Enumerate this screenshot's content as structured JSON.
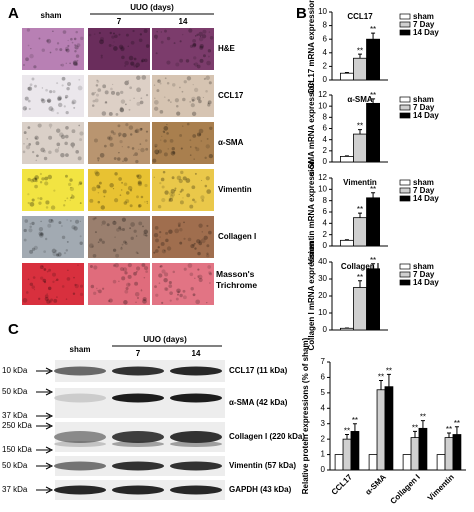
{
  "panels": [
    "A",
    "B",
    "C"
  ],
  "panel_a": {
    "columns": {
      "sham": "sham",
      "group": "UUO (days)",
      "days": [
        "7",
        "14"
      ]
    },
    "rows": [
      "H&E",
      "CCL17",
      "α-SMA",
      "Vimentin",
      "Collagen I",
      "Masson's Trichrome"
    ]
  },
  "blot": {
    "columns": {
      "sham": "sham",
      "group": "UUO (days)",
      "days": [
        "7",
        "14"
      ]
    },
    "rows": [
      {
        "label": "CCL17 (11 kDa)",
        "markers": [
          "10 kDa"
        ]
      },
      {
        "label": "α-SMA (42 kDa)",
        "markers": [
          "50 kDa",
          "37 kDa"
        ]
      },
      {
        "label": "Collagen I (220 kDa)",
        "markers": [
          "250 kDa",
          "150 kDa"
        ]
      },
      {
        "label": "Vimentin (57 kDa)",
        "markers": [
          "50 kDa"
        ]
      },
      {
        "label": "GAPDH (43 kDa)",
        "markers": [
          "37 kDa"
        ]
      }
    ]
  },
  "chart_data": [
    {
      "type": "bar",
      "title": "CCL17",
      "y_label": "CCL17 mRNA expression",
      "ylim": [
        0,
        10
      ],
      "yticks": [
        0,
        2,
        4,
        6,
        8,
        10
      ],
      "legend": "right",
      "series": [
        {
          "name": "sham",
          "color": "#ffffff",
          "values": [
            1
          ],
          "errors": [
            0.1
          ]
        },
        {
          "name": "7 Day",
          "color": "#d0d0d0",
          "values": [
            3.2
          ],
          "errors": [
            0.6
          ],
          "annotations": [
            "**"
          ]
        },
        {
          "name": "14 Day",
          "color": "#000000",
          "values": [
            6
          ],
          "errors": [
            0.9
          ],
          "annotations": [
            "**"
          ]
        }
      ]
    },
    {
      "type": "bar",
      "title": "α-SMA",
      "y_label": "α-SMA mRNA expression",
      "ylim": [
        0,
        12
      ],
      "yticks": [
        0,
        2,
        4,
        6,
        8,
        10,
        12
      ],
      "legend": "right",
      "series": [
        {
          "name": "sham",
          "color": "#ffffff",
          "values": [
            1
          ],
          "errors": [
            0.1
          ]
        },
        {
          "name": "7 Day",
          "color": "#d0d0d0",
          "values": [
            5
          ],
          "errors": [
            0.8
          ],
          "annotations": [
            "**"
          ]
        },
        {
          "name": "14 Day",
          "color": "#000000",
          "values": [
            10.5
          ],
          "errors": [
            0.8
          ],
          "annotations": [
            "**"
          ]
        }
      ]
    },
    {
      "type": "bar",
      "title": "Vimentin",
      "y_label": "Vimentin mRNA expression",
      "ylim": [
        0,
        12
      ],
      "yticks": [
        0,
        2,
        4,
        6,
        8,
        10,
        12
      ],
      "legend": "right",
      "series": [
        {
          "name": "sham",
          "color": "#ffffff",
          "values": [
            1
          ],
          "errors": [
            0.1
          ]
        },
        {
          "name": "7 Day",
          "color": "#d0d0d0",
          "values": [
            5
          ],
          "errors": [
            0.8
          ],
          "annotations": [
            "**"
          ]
        },
        {
          "name": "14 Day",
          "color": "#000000",
          "values": [
            8.5
          ],
          "errors": [
            0.9
          ],
          "annotations": [
            "**"
          ]
        }
      ]
    },
    {
      "type": "bar",
      "title": "Collagen I",
      "y_label": "Collagen I mRNA expression",
      "ylim": [
        0,
        40
      ],
      "yticks": [
        0,
        10,
        20,
        30,
        40
      ],
      "legend": "right",
      "series": [
        {
          "name": "sham",
          "color": "#ffffff",
          "values": [
            1
          ],
          "errors": [
            0.2
          ]
        },
        {
          "name": "7 Day",
          "color": "#d0d0d0",
          "values": [
            25
          ],
          "errors": [
            4
          ],
          "annotations": [
            "**"
          ]
        },
        {
          "name": "14 Day",
          "color": "#000000",
          "values": [
            36
          ],
          "errors": [
            3
          ],
          "annotations": [
            "**"
          ]
        }
      ]
    },
    {
      "type": "bar",
      "y_label": "Relative protein expressions (% of sham)",
      "categories": [
        "CCL17",
        "α-SMA",
        "Collagen I",
        "Vimentin"
      ],
      "ylim": [
        0,
        7
      ],
      "yticks": [
        0,
        1,
        2,
        3,
        4,
        5,
        6,
        7
      ],
      "series": [
        {
          "color": "#ffffff",
          "values": [
            1,
            1,
            1,
            1
          ]
        },
        {
          "color": "#d0d0d0",
          "values": [
            2,
            5.2,
            2.1,
            2.1
          ],
          "errors": [
            0.3,
            0.6,
            0.4,
            0.3
          ],
          "annotations": [
            "**",
            "**",
            "**",
            "**"
          ]
        },
        {
          "color": "#000000",
          "values": [
            2.5,
            5.4,
            2.7,
            2.3
          ],
          "errors": [
            0.5,
            0.8,
            0.5,
            0.5
          ],
          "annotations": [
            "**",
            "**",
            "**",
            "**"
          ]
        }
      ]
    }
  ]
}
